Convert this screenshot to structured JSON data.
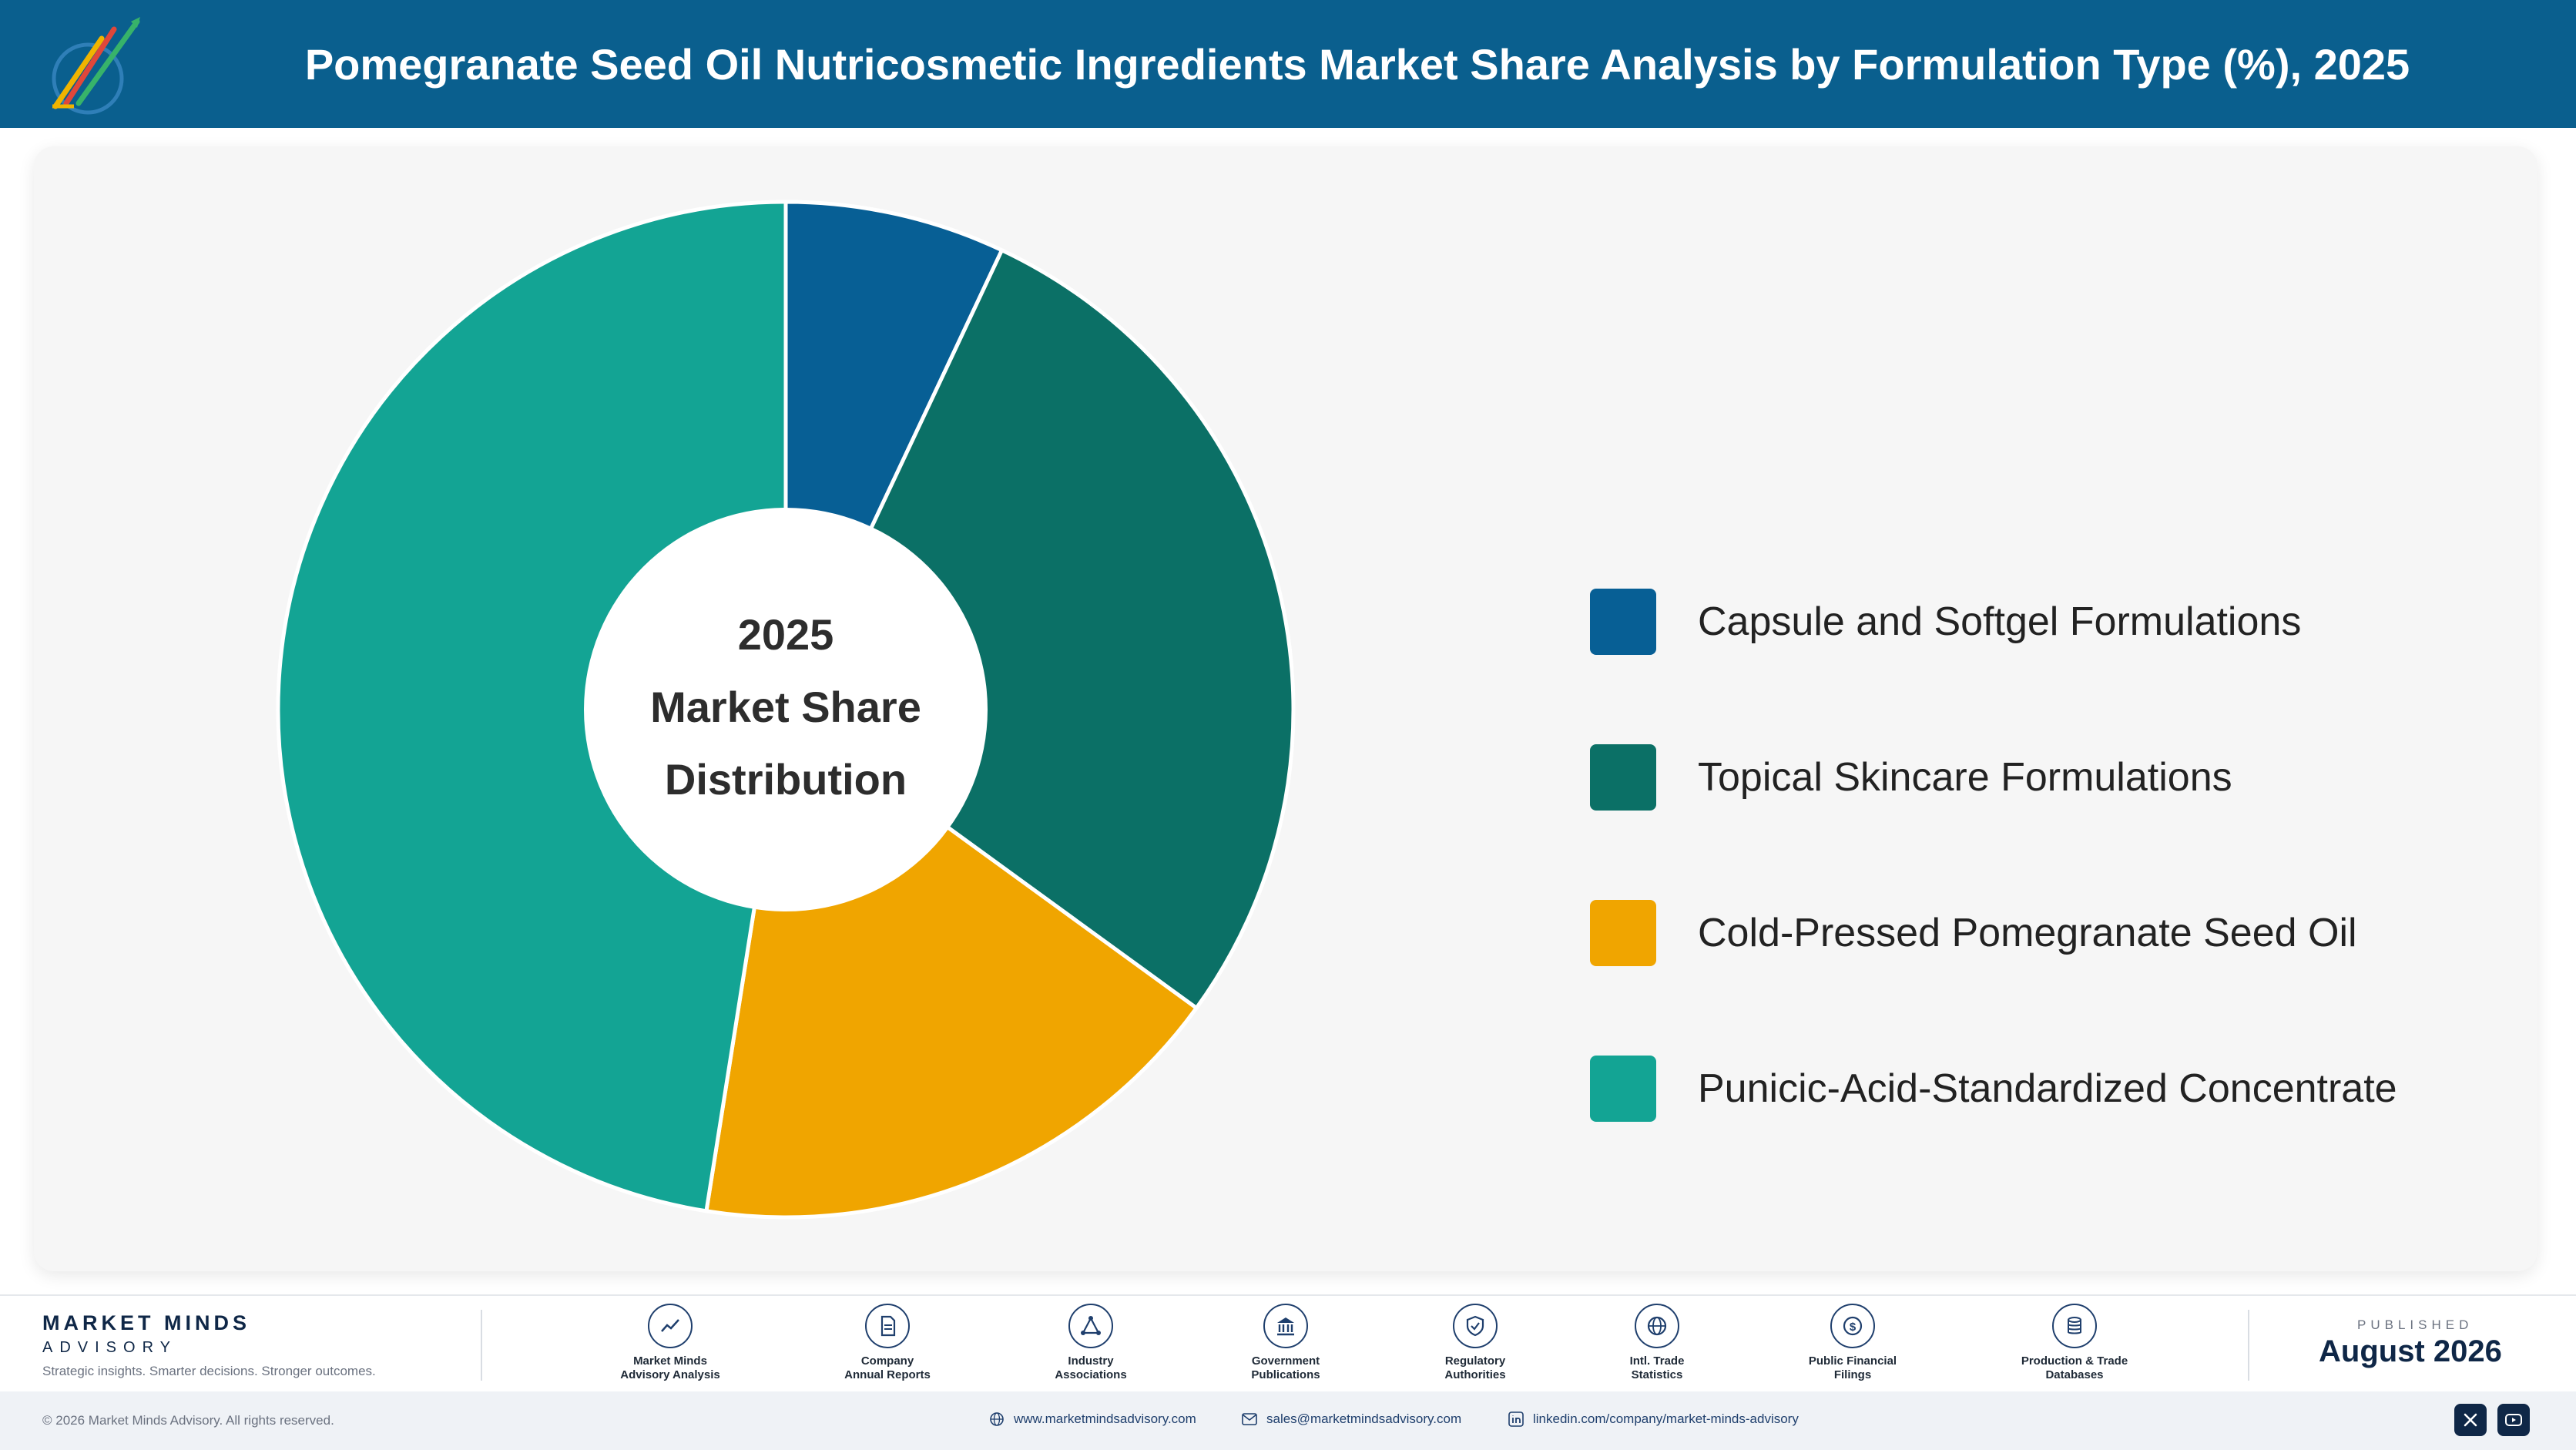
{
  "header": {
    "title": "Pomegranate Seed Oil Nutricosmetic Ingredients Market Share Analysis by Formulation Type (%), 2025",
    "logo_icon": "market-minds-logo"
  },
  "chart_data": {
    "type": "pie",
    "variant": "donut",
    "center_text": [
      "2025",
      "Market Share",
      "Distribution"
    ],
    "categories": [
      "Capsule and Softgel Formulations",
      "Topical Skincare Formulations",
      "Cold-Pressed Pomegranate Seed Oil",
      "Punicic-Acid-Standardized Concentrate"
    ],
    "values": [
      7,
      28,
      17.5,
      47.5
    ],
    "colors": [
      "#075f95",
      "#0b7066",
      "#f0a500",
      "#13a494"
    ],
    "legend_position": "right"
  },
  "footer": {
    "brand_name": "MARKET MINDS",
    "brand_sub": "ADVISORY",
    "tagline": "Strategic insights. Smarter decisions. Stronger outcomes.",
    "sources": [
      {
        "icon": "trend-line-icon",
        "line1": "Market Minds",
        "line2": "Advisory Analysis"
      },
      {
        "icon": "document-icon",
        "line1": "Company",
        "line2": "Annual Reports"
      },
      {
        "icon": "network-icon",
        "line1": "Industry",
        "line2": "Associations"
      },
      {
        "icon": "government-building-icon",
        "line1": "Government",
        "line2": "Publications"
      },
      {
        "icon": "shield-check-icon",
        "line1": "Regulatory",
        "line2": "Authorities"
      },
      {
        "icon": "globe-icon",
        "line1": "Intl. Trade",
        "line2": "Statistics"
      },
      {
        "icon": "dollar-coin-icon",
        "line1": "Public Financial",
        "line2": "Filings"
      },
      {
        "icon": "database-icon",
        "line1": "Production & Trade",
        "line2": "Databases"
      }
    ],
    "published_label": "PUBLISHED",
    "published_date": "August 2026",
    "copyright": "© 2026 Market Minds Advisory. All rights reserved.",
    "website": "www.marketmindsadvisory.com",
    "email": "sales@marketmindsadvisory.com",
    "linkedin": "linkedin.com/company/market-minds-advisory"
  }
}
